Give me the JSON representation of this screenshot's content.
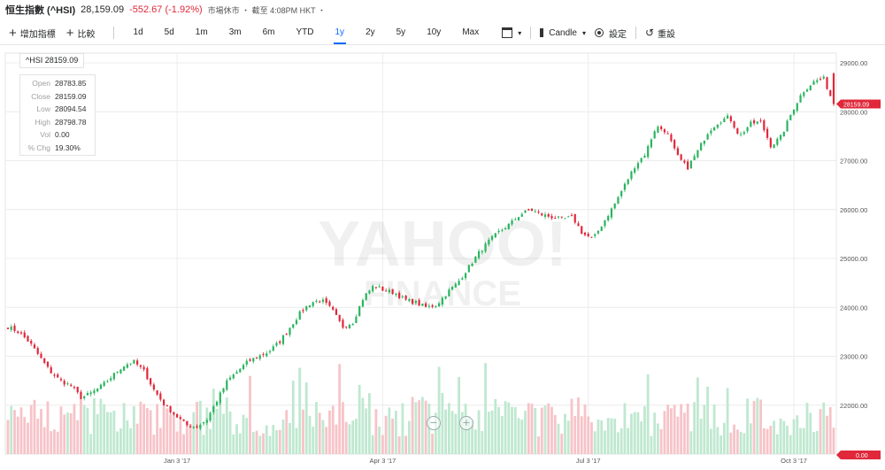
{
  "header": {
    "name": "恒生指數 (^HSI)",
    "price": "28,159.09",
    "change": "-552.67 (-1.92%)",
    "market_status": "市場休市 ・ 截至 4:08PM HKT ・"
  },
  "toolbar": {
    "add_indicator": "增加指標",
    "compare": "比較",
    "ranges": [
      "1d",
      "5d",
      "1m",
      "3m",
      "6m",
      "YTD",
      "1y",
      "2y",
      "5y",
      "10y",
      "Max"
    ],
    "selected_range": "1y",
    "chart_type": "Candle",
    "settings": "設定",
    "reset": "重設"
  },
  "tooltip": {
    "symbol": "^HSI 28159.09",
    "rows": [
      {
        "k": "Open",
        "v": "28783.85"
      },
      {
        "k": "Close",
        "v": "28159.09"
      },
      {
        "k": "Low",
        "v": "28094.54"
      },
      {
        "k": "High",
        "v": "28798.78"
      },
      {
        "k": "Vol",
        "v": "0.00"
      },
      {
        "k": "% Chg",
        "v": "19.30%"
      }
    ]
  },
  "watermark": {
    "line1": "YAHOO!",
    "line2": "FINANCE"
  },
  "colors": {
    "up": "#2ab55f",
    "down": "#e0283a",
    "up_vol": "#bfe8d0",
    "down_vol": "#f7c3c8",
    "accent": "#0f69ff"
  },
  "chart_data": {
    "type": "candlestick",
    "y_ticks": [
      "29000.00",
      "28000.00",
      "27000.00",
      "26000.00",
      "25000.00",
      "24000.00",
      "23000.00",
      "22000.00"
    ],
    "volume_axis_label": "0.00",
    "x_labels": [
      "Jan 3 '17",
      "Apr 3 '17",
      "Jul 3 '17",
      "Oct 3 '17"
    ],
    "last_price_label": "28159.09",
    "ylim": [
      21000,
      29200
    ],
    "close_path": [
      23600,
      23500,
      23300,
      23000,
      22700,
      22500,
      22400,
      22150,
      22250,
      22400,
      22600,
      22800,
      22900,
      22700,
      22300,
      22000,
      21800,
      21600,
      21550,
      21700,
      22100,
      22500,
      22700,
      22900,
      23000,
      23100,
      23300,
      23600,
      23900,
      24100,
      24150,
      23950,
      23600,
      23700,
      24200,
      24450,
      24350,
      24300,
      24150,
      24100,
      24000,
      24050,
      24300,
      24500,
      24800,
      25100,
      25350,
      25550,
      25700,
      25900,
      26000,
      25900,
      25850,
      25800,
      25850,
      25500,
      25400,
      25750,
      26100,
      26500,
      26900,
      27150,
      27700,
      27600,
      27100,
      26850,
      27200,
      27600,
      27800,
      27900,
      27500,
      27750,
      27800,
      27300,
      27500,
      28000,
      28400,
      28600,
      28700,
      28160
    ],
    "grid": true,
    "legend": "none"
  }
}
